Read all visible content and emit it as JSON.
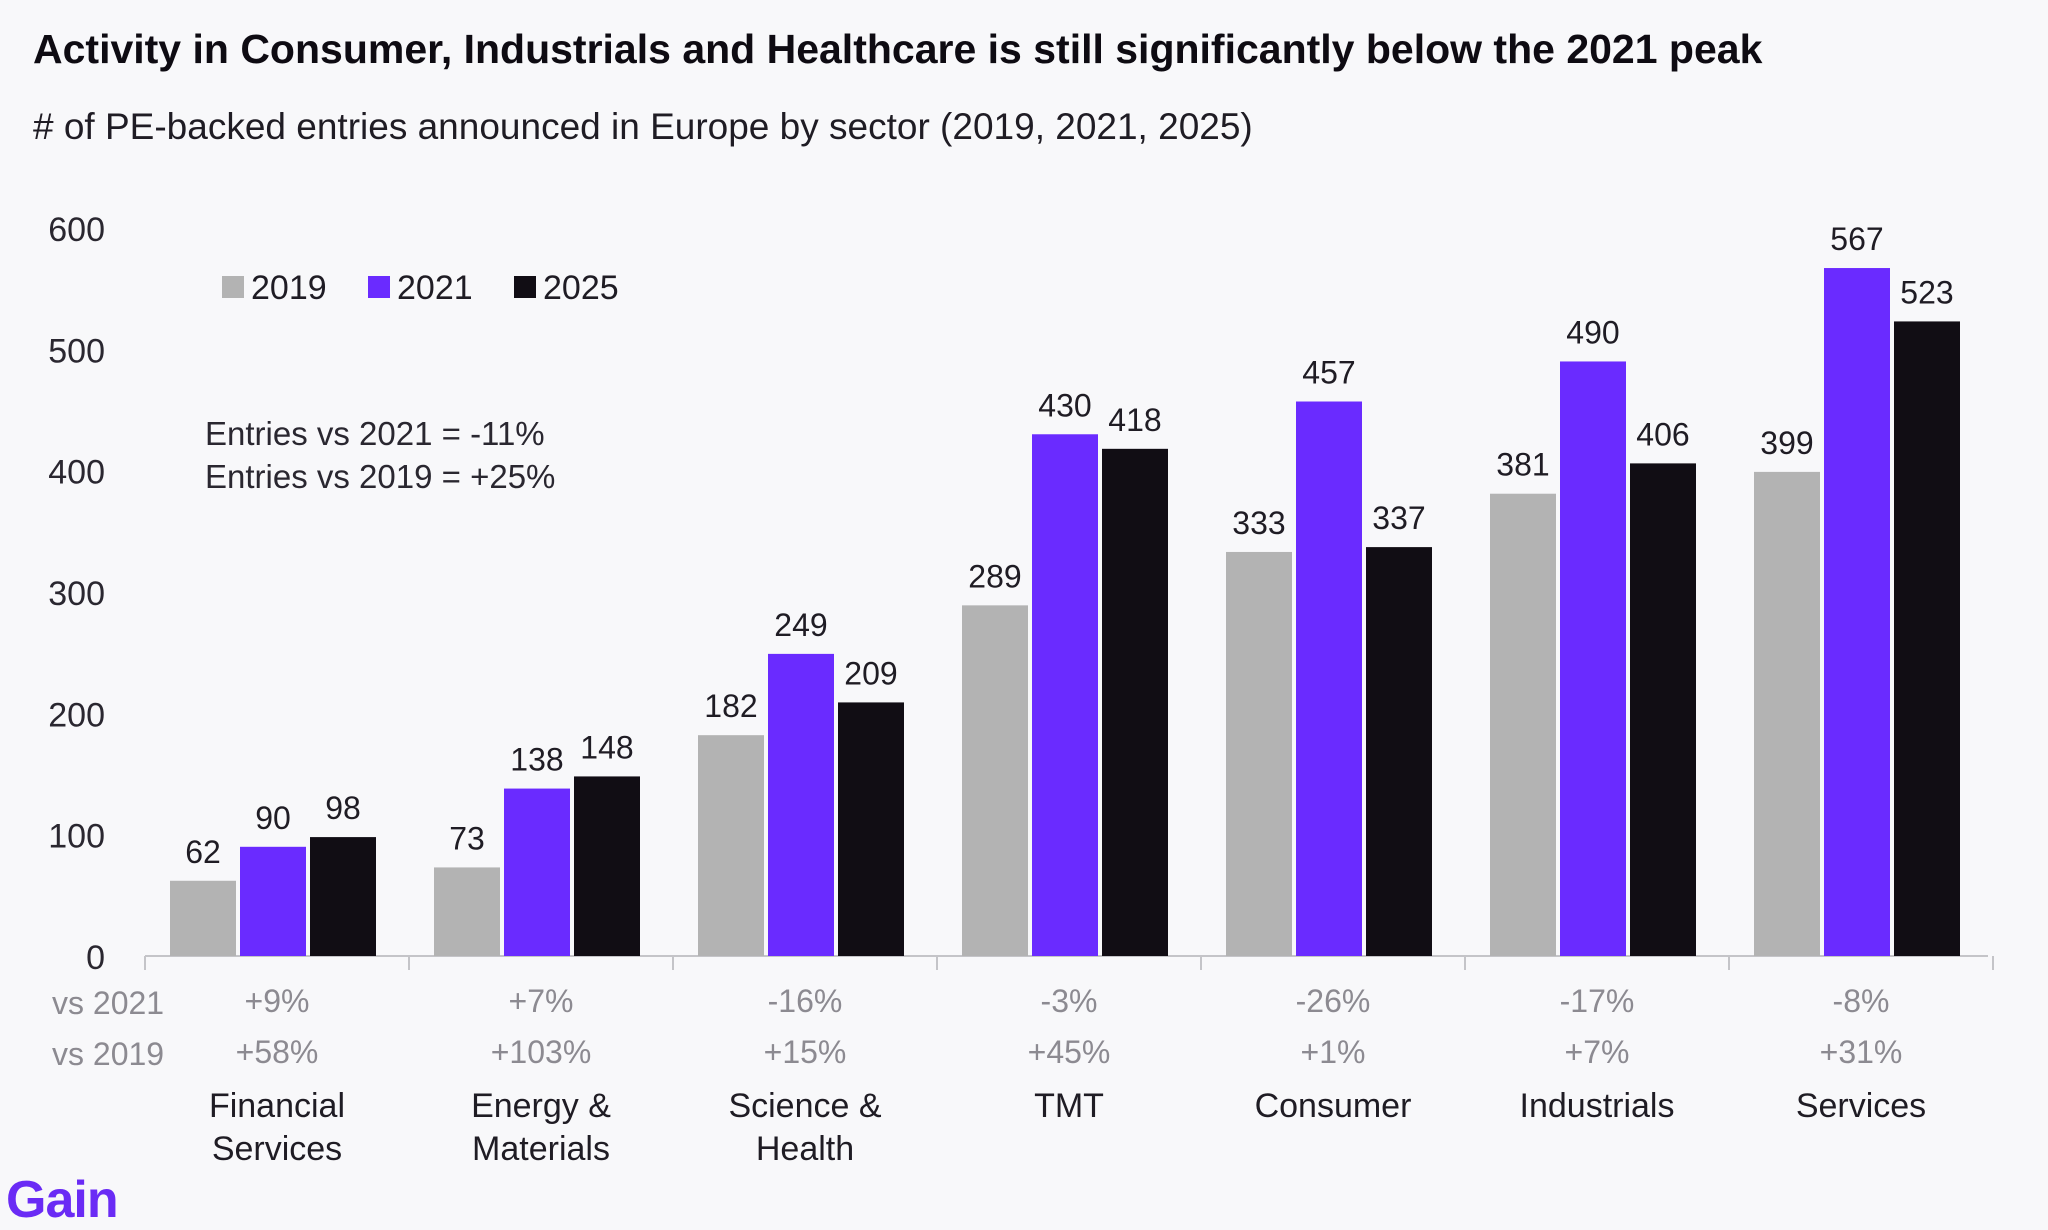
{
  "title": "Activity in Consumer, Industrials and Healthcare is still significantly below the 2021 peak",
  "subtitle": "# of PE-backed entries announced in Europe  by sector (2019, 2021, 2025)",
  "logo": "Gain",
  "chart_data": {
    "type": "bar",
    "categories": [
      [
        "Financial",
        "Services"
      ],
      [
        "Energy &",
        "Materials"
      ],
      [
        "Science &",
        "Health"
      ],
      [
        "TMT"
      ],
      [
        "Consumer"
      ],
      [
        "Industrials"
      ],
      [
        "Services"
      ]
    ],
    "series": [
      {
        "name": "2019",
        "color": "#b3b3b3",
        "values": [
          62,
          73,
          182,
          289,
          333,
          381,
          399
        ]
      },
      {
        "name": "2021",
        "color": "#6a2bff",
        "values": [
          90,
          138,
          249,
          430,
          457,
          490,
          567
        ]
      },
      {
        "name": "2025",
        "color": "#110d14",
        "values": [
          98,
          148,
          209,
          418,
          337,
          406,
          523
        ]
      }
    ],
    "yticks": [
      0,
      100,
      200,
      300,
      400,
      500,
      600
    ],
    "ylim": [
      0,
      600
    ],
    "legend_position": "top-left",
    "grid": false,
    "annotation_lines": [
      "Entries vs 2021  =  -11%",
      "Entries vs 2019  = +25%"
    ],
    "comparison_rows": [
      {
        "label": "vs 2021",
        "values": [
          "+9%",
          "+7%",
          "-16%",
          "-3%",
          "-26%",
          "-17%",
          "-8%"
        ]
      },
      {
        "label": "vs 2019",
        "values": [
          "+58%",
          "+103%",
          "+15%",
          "+45%",
          "+1%",
          "+7%",
          "+31%"
        ]
      }
    ]
  }
}
